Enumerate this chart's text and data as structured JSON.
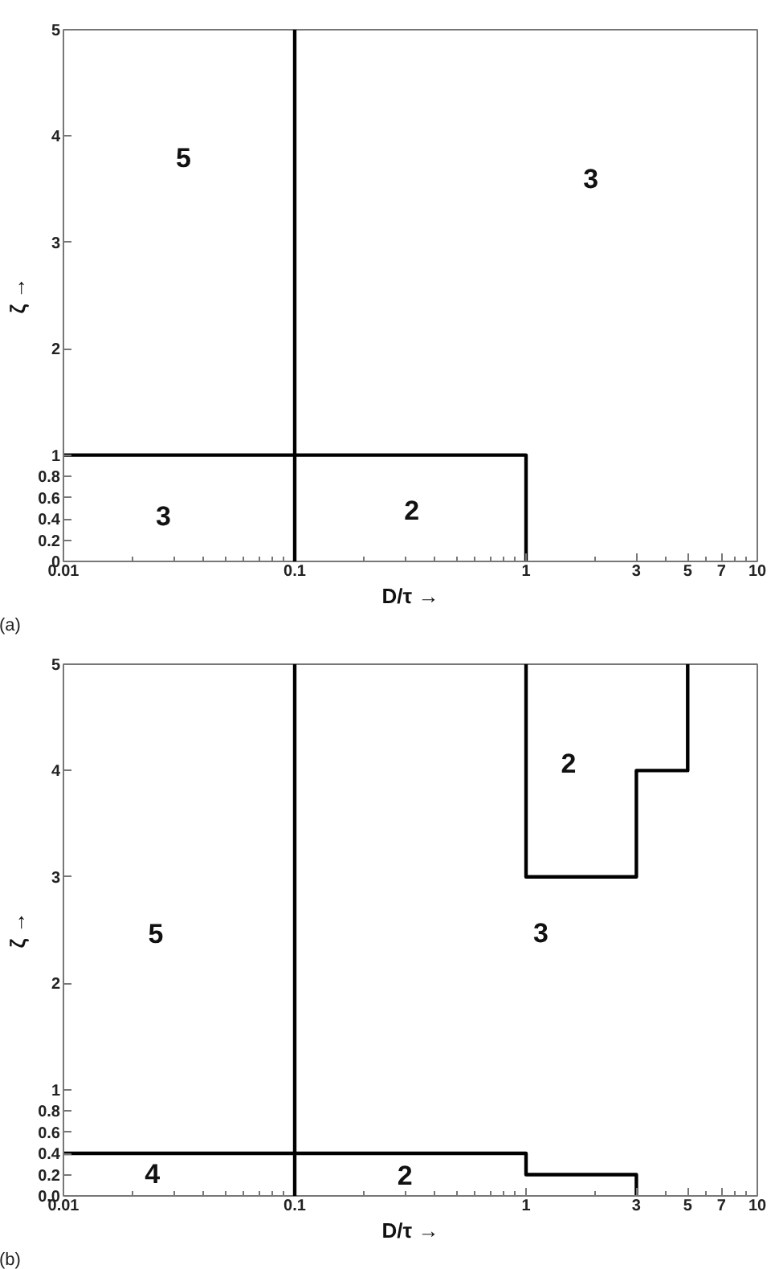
{
  "chart_data": [
    {
      "type": "line",
      "xlabel": "D/τ →",
      "ylabel": "ζ →",
      "log": "x",
      "grid": false,
      "line_style": "solid",
      "xlim": [
        0.01,
        10
      ],
      "xticks": [
        0.01,
        0.1,
        1,
        3,
        5,
        7,
        10
      ],
      "ylim": [
        0,
        5
      ],
      "yticks": [
        0,
        0.2,
        0.4,
        0.6,
        0.8,
        1,
        2,
        3,
        4,
        5
      ],
      "ref_lines": [
        {
          "axis": "x",
          "value": 0.1,
          "color": "#000000"
        }
      ],
      "series": [
        {
          "color": "#000000",
          "x": [
            0.01,
            1,
            1
          ],
          "values": [
            1,
            1,
            0
          ]
        }
      ],
      "annotations": [
        "5",
        "3",
        "3",
        "2",
        "(a)"
      ]
    },
    {
      "type": "line",
      "xlabel": "D/τ →",
      "ylabel": "ζ →",
      "log": "x",
      "grid": false,
      "line_style": "solid",
      "xlim": [
        0.01,
        10
      ],
      "xticks": [
        0.01,
        0.1,
        1,
        3,
        5,
        7,
        10
      ],
      "ylim": [
        0,
        5
      ],
      "yticks": [
        {
          "value": 0,
          "label": "0.0"
        },
        0.2,
        0.4,
        0.6,
        0.8,
        1,
        2,
        3,
        4,
        5
      ],
      "ref_lines": [
        {
          "axis": "x",
          "value": 0.1,
          "color": "#000000"
        }
      ],
      "series": [
        {
          "color": "#000000",
          "x": [
            0.01,
            1,
            1,
            3,
            3
          ],
          "values": [
            0.4,
            0.4,
            0.2,
            0.2,
            0
          ]
        },
        {
          "color": "#000000",
          "x": [
            1,
            1,
            3,
            3,
            5,
            5
          ],
          "values": [
            5,
            3,
            3,
            4,
            4,
            5
          ]
        }
      ],
      "annotations": [
        "2",
        "5",
        "3",
        "4",
        "2",
        "(b)"
      ]
    }
  ]
}
